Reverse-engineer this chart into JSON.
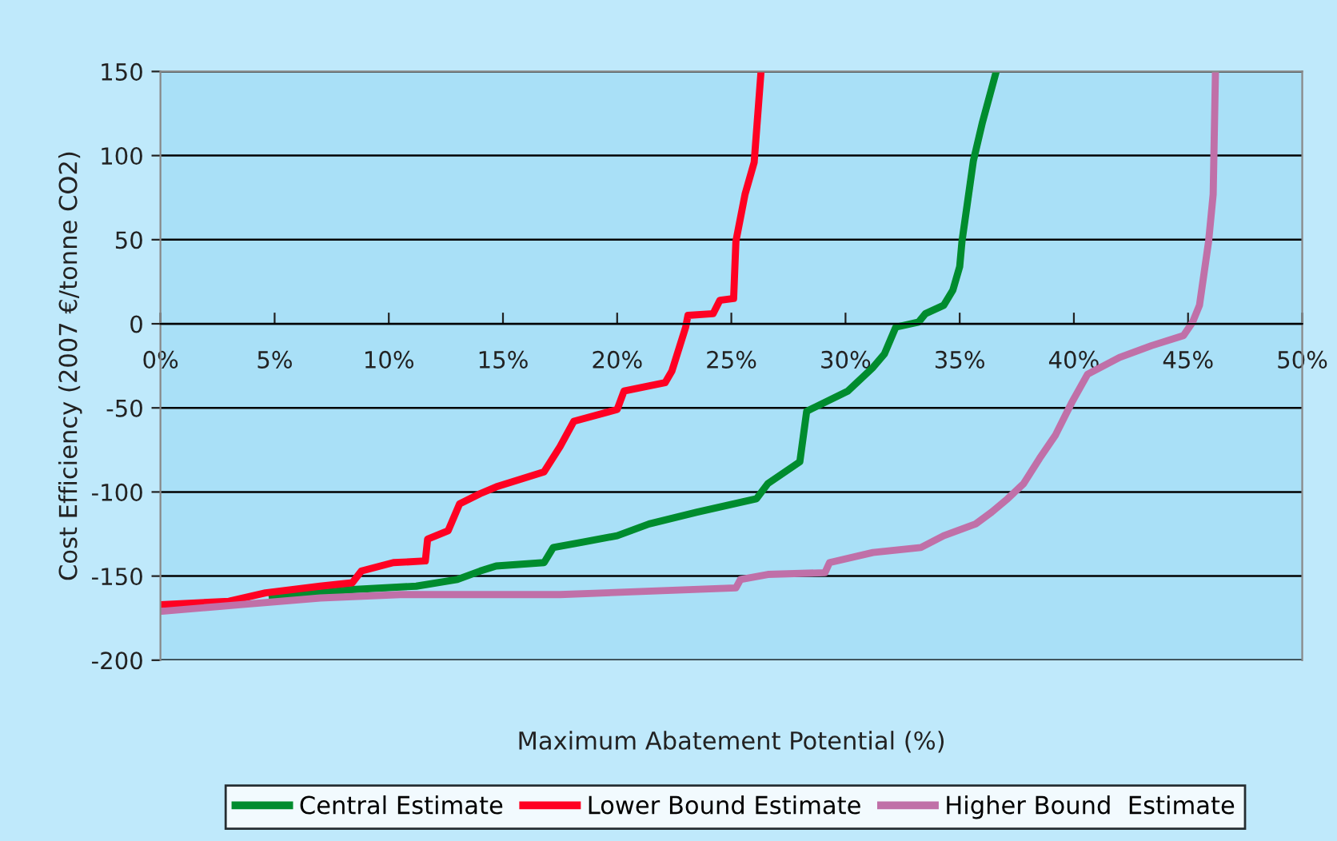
{
  "chart_data": {
    "type": "line",
    "xlabel": "Maximum Abatement Potential (%)",
    "ylabel": "Cost Efficiency (2007 €/tonne CO2)",
    "xlim": [
      0,
      50
    ],
    "ylim": [
      -200,
      150
    ],
    "xticks": [
      {
        "value": 0,
        "label": "0%"
      },
      {
        "value": 5,
        "label": "5%"
      },
      {
        "value": 10,
        "label": "10%"
      },
      {
        "value": 15,
        "label": "15%"
      },
      {
        "value": 20,
        "label": "20%"
      },
      {
        "value": 25,
        "label": "25%"
      },
      {
        "value": 30,
        "label": "30%"
      },
      {
        "value": 35,
        "label": "35%"
      },
      {
        "value": 40,
        "label": "40%"
      },
      {
        "value": 45,
        "label": "45%"
      },
      {
        "value": 50,
        "label": "50%"
      }
    ],
    "yticks": [
      -200,
      -150,
      -100,
      -50,
      0,
      50,
      100,
      150
    ],
    "grid": "y",
    "legend": "bottom",
    "marker": "none",
    "line_style": "solid",
    "series": [
      {
        "name": "Central Estimate",
        "color": "#008c2e",
        "x": [
          4.9,
          7,
          8.4,
          11.2,
          13,
          14,
          14.7,
          16.8,
          17.2,
          18.4,
          20,
          21.4,
          23.5,
          26.1,
          26.6,
          28,
          28.3,
          30.1,
          31.2,
          31.7,
          32.2,
          33.2,
          33.5,
          34.3,
          34.7,
          35,
          35.1,
          35.6,
          36,
          36.6
        ],
        "values": [
          -163,
          -160,
          -158,
          -156,
          -152,
          -147,
          -144,
          -142,
          -133,
          -130,
          -126,
          -119,
          -112,
          -104,
          -95,
          -82,
          -52,
          -40,
          -26,
          -18,
          -2,
          1,
          6,
          11,
          20,
          34,
          49,
          97,
          120,
          150
        ]
      },
      {
        "name": "Lower Bound Estimate",
        "color": "#ff0022",
        "x": [
          0,
          3,
          4.6,
          7,
          8.4,
          8.8,
          10.2,
          11.6,
          11.7,
          12.6,
          13.1,
          14,
          14.7,
          16.8,
          17.5,
          18.1,
          20,
          20.3,
          22.1,
          22.4,
          23,
          23.1,
          24.2,
          24.5,
          25.1,
          25.2,
          25.6,
          26,
          26.3
        ],
        "values": [
          -167,
          -165,
          -160,
          -156,
          -154,
          -147,
          -142,
          -141,
          -128,
          -123,
          -107,
          -101,
          -97,
          -88,
          -73,
          -58,
          -51,
          -40,
          -35,
          -28,
          -2,
          5,
          6,
          14,
          15,
          49,
          77,
          96,
          150
        ]
      },
      {
        "name": "Higher Bound  Estimate",
        "color": "#c070a8",
        "x": [
          0,
          3.5,
          7,
          10.5,
          17.5,
          25.2,
          25.4,
          26.6,
          29.1,
          29.3,
          31.2,
          33.3,
          34.3,
          35.7,
          36.4,
          37.1,
          37.8,
          38.5,
          39.2,
          39.9,
          40.6,
          42,
          43.4,
          44.8,
          45.2,
          45.5,
          45.9,
          46.1,
          46.2
        ],
        "values": [
          -171,
          -167,
          -163,
          -161,
          -161,
          -157,
          -152,
          -149,
          -148,
          -142,
          -136,
          -133,
          -126,
          -119,
          -112,
          -104,
          -95,
          -80,
          -66,
          -47,
          -30,
          -20,
          -13,
          -7,
          1,
          11,
          49,
          77,
          150
        ]
      }
    ]
  }
}
